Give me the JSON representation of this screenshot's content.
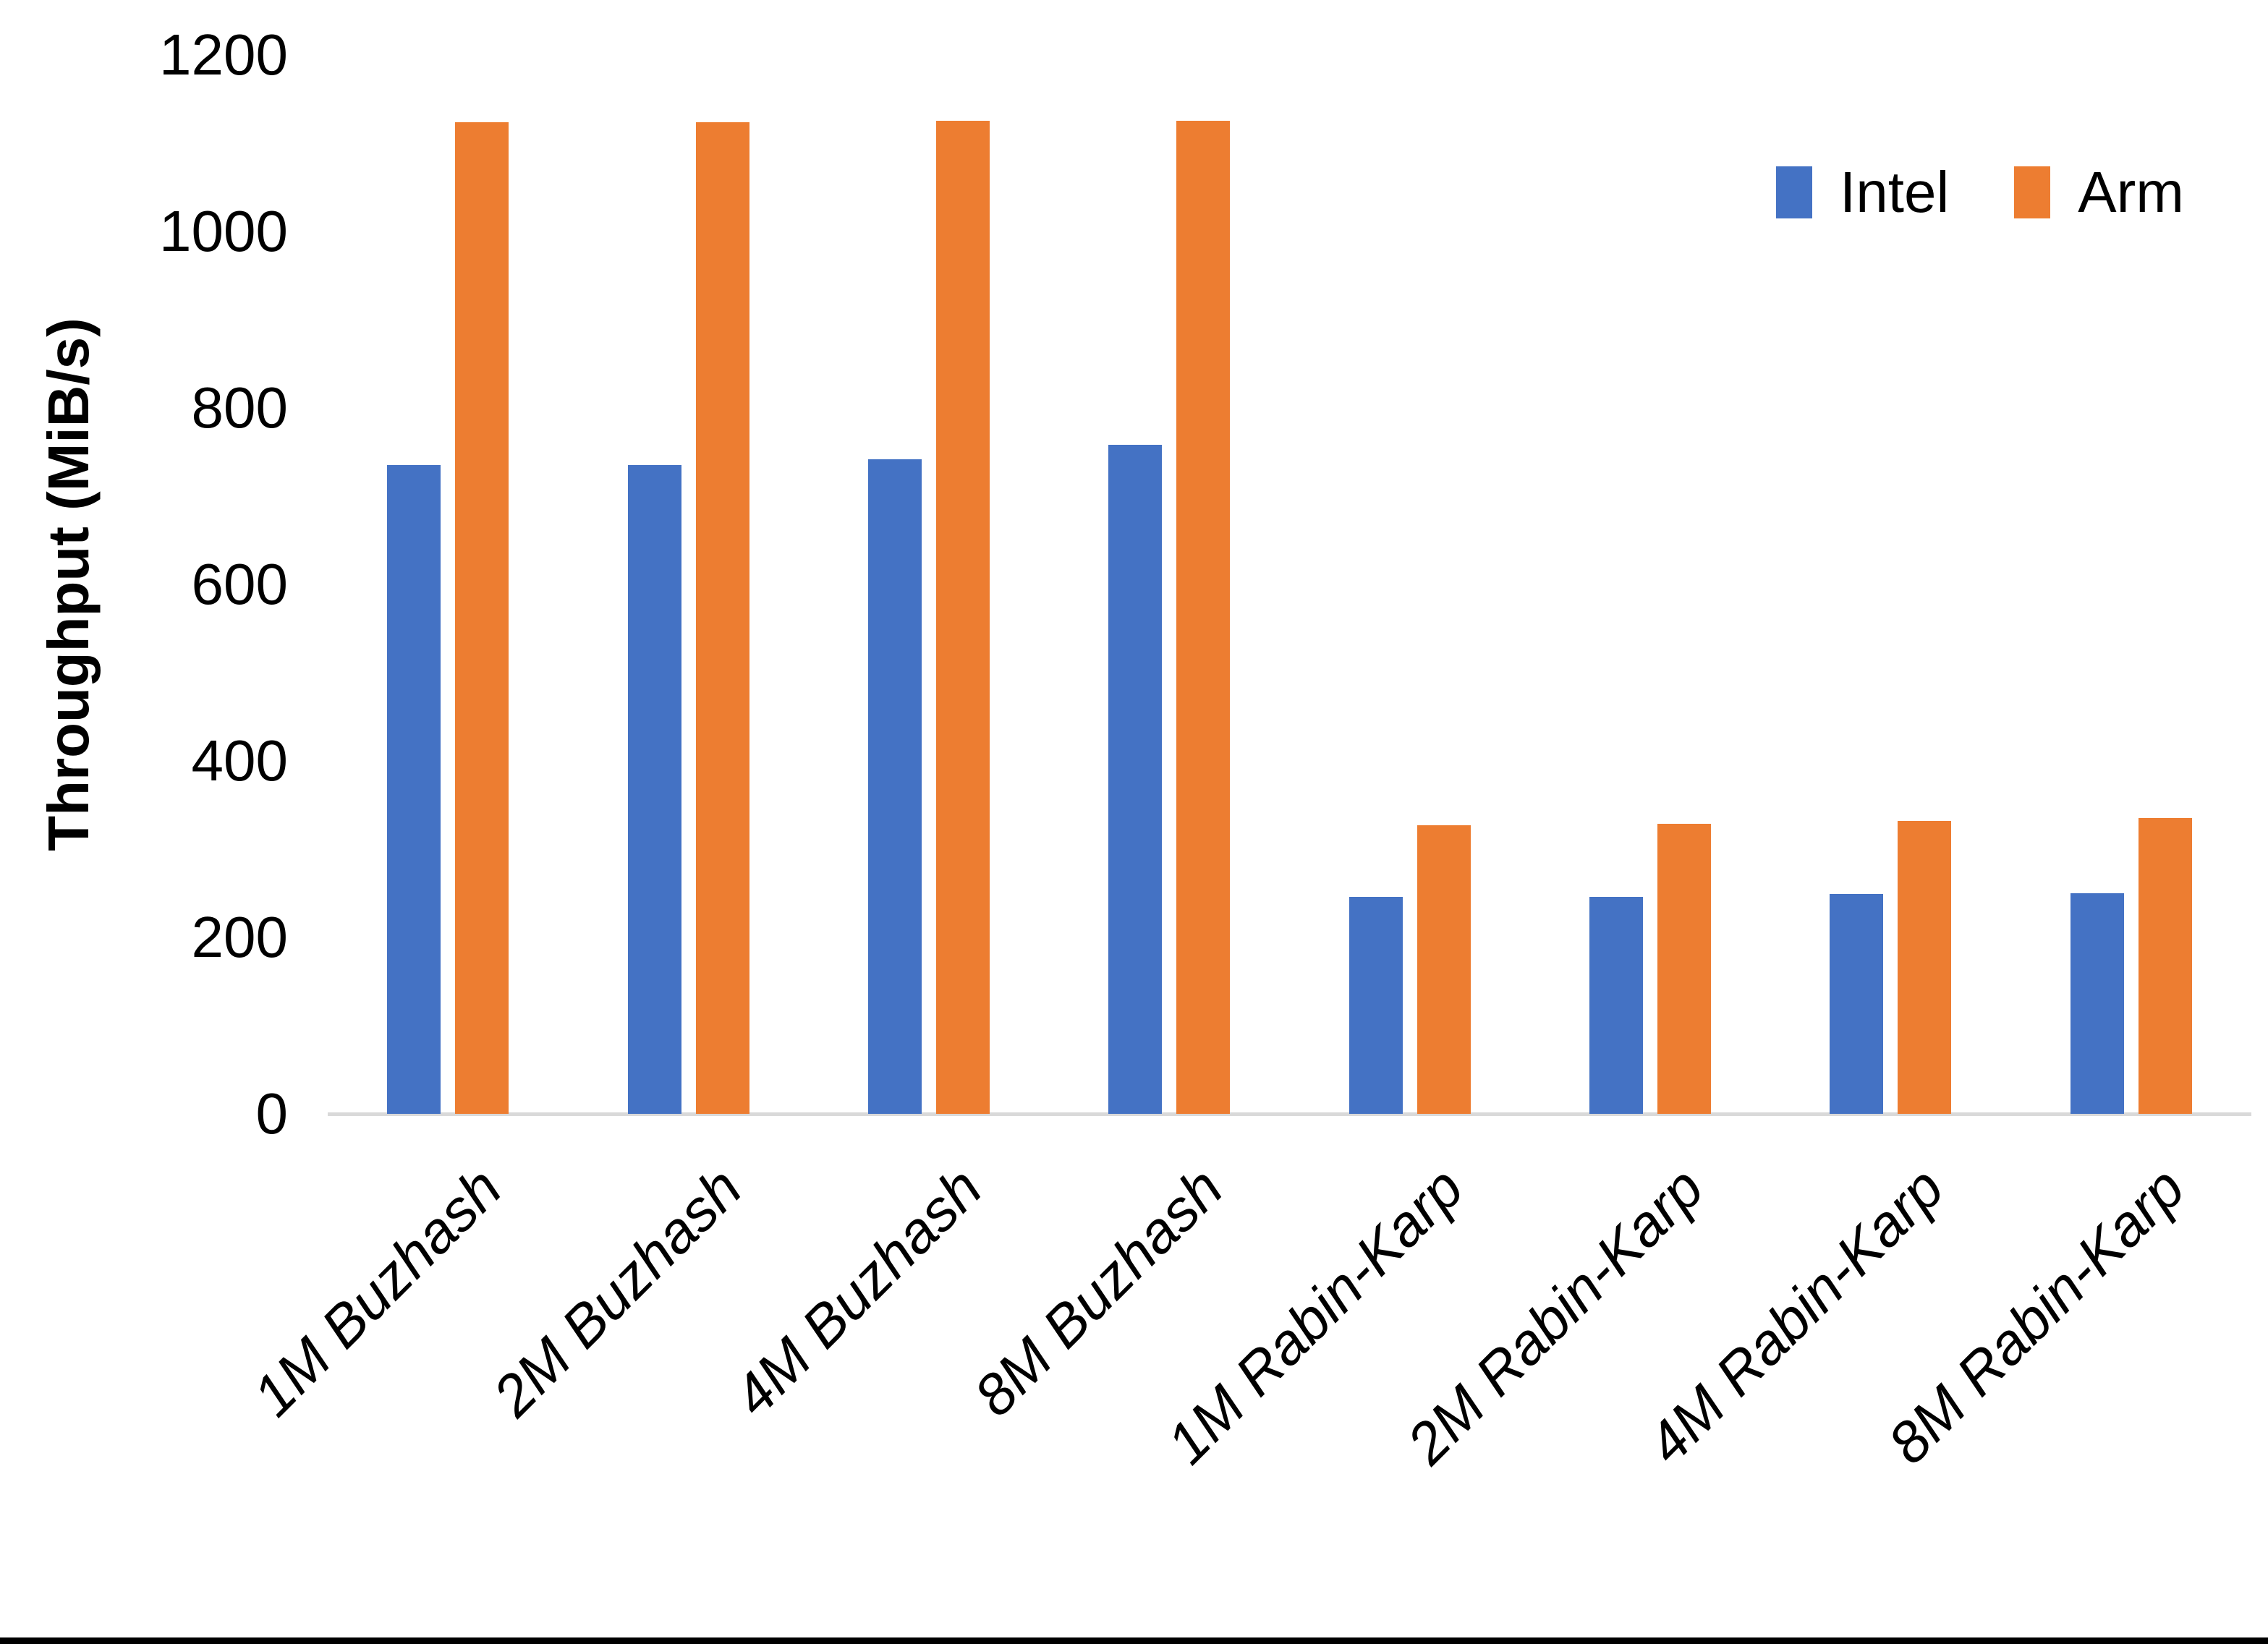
{
  "chart_data": {
    "type": "bar",
    "title": "",
    "xlabel": "",
    "ylabel": "Throughput (MiB/s)",
    "categories": [
      "1M Buzhash",
      "2M Buzhash",
      "4M Buzhash",
      "8M Buzhash",
      "1M Rabin-Karp",
      "2M Rabin-Karp",
      "4M Rabin-Karp",
      "8M Rabin-Karp"
    ],
    "series": [
      {
        "name": "Intel",
        "color": "#4472C4",
        "values": [
          735,
          735,
          742,
          758,
          246,
          246,
          249,
          250
        ]
      },
      {
        "name": "Arm",
        "color": "#ED7D31",
        "values": [
          1124,
          1124,
          1125,
          1125,
          327,
          329,
          332,
          335
        ]
      }
    ],
    "ylim": [
      0,
      1200
    ],
    "yticks": [
      0,
      200,
      400,
      600,
      800,
      1000,
      1200
    ],
    "grid": false,
    "legend_position": "top-right",
    "axis_line_color": "#D9D9D9",
    "text_color": "#000000"
  }
}
